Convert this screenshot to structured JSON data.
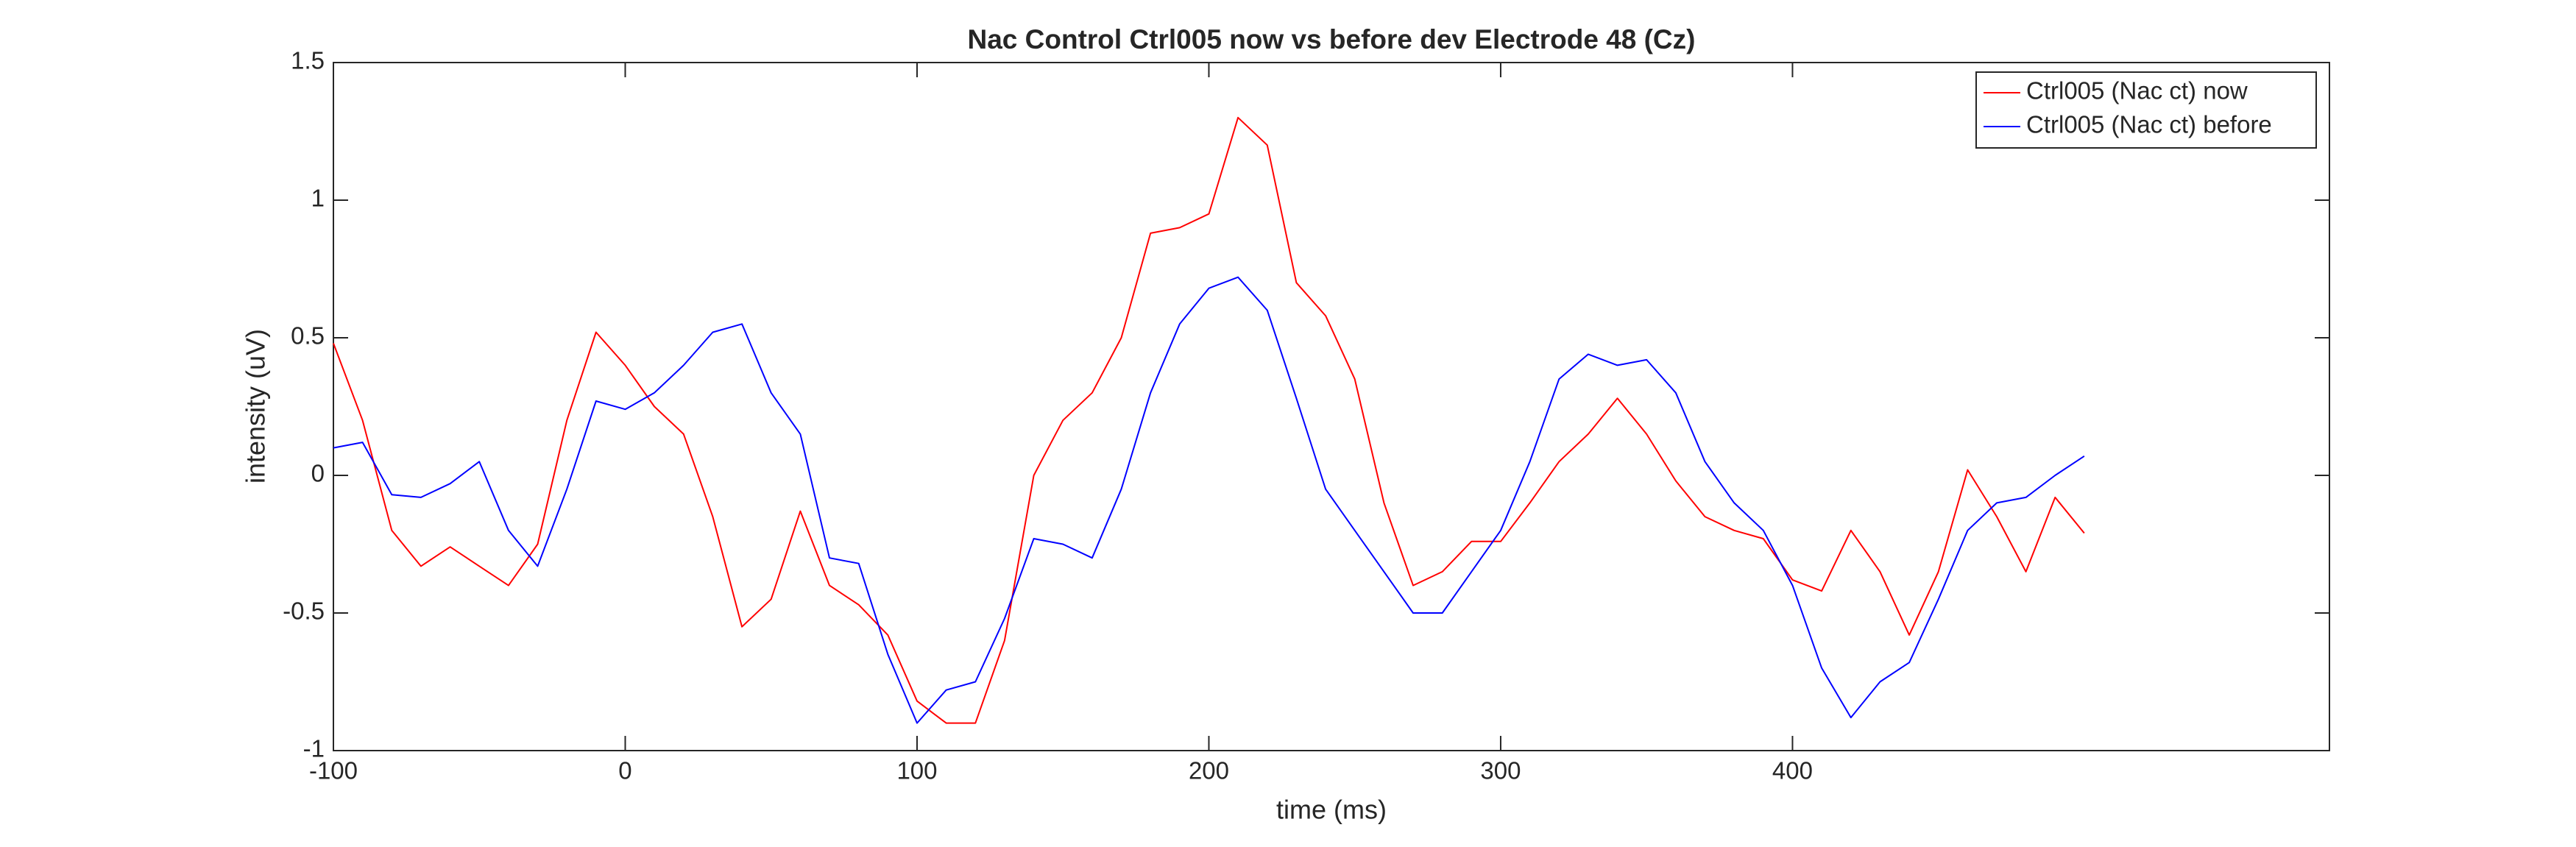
{
  "chart_data": {
    "type": "line",
    "title": "Nac Control Ctrl005 now vs before dev Electrode 48 (Cz)",
    "xlabel": "time (ms)",
    "ylabel": "intensity (uV)",
    "x": [
      -100,
      -90,
      -80,
      -70,
      -60,
      -50,
      -40,
      -30,
      -20,
      -10,
      0,
      10,
      20,
      30,
      40,
      50,
      60,
      70,
      80,
      90,
      100,
      110,
      120,
      130,
      140,
      150,
      160,
      170,
      180,
      190,
      200,
      210,
      220,
      230,
      240,
      250,
      260,
      270,
      280,
      290,
      300,
      310,
      320,
      330,
      340,
      350,
      360,
      370,
      380,
      390,
      400,
      410,
      420,
      430,
      440,
      450,
      460,
      470,
      480,
      490,
      500
    ],
    "series": [
      {
        "name": "Ctrl005 (Nac ct) now",
        "color": "#ff0000",
        "values": [
          0.48,
          0.2,
          -0.2,
          -0.33,
          -0.26,
          -0.33,
          -0.4,
          -0.25,
          0.2,
          0.52,
          0.4,
          0.25,
          0.15,
          -0.15,
          -0.55,
          -0.45,
          -0.13,
          -0.4,
          -0.47,
          -0.58,
          -0.82,
          -0.9,
          -0.9,
          -0.6,
          0.0,
          0.2,
          0.3,
          0.5,
          0.88,
          0.9,
          0.95,
          1.3,
          1.2,
          0.7,
          0.58,
          0.35,
          -0.1,
          -0.4,
          -0.35,
          -0.24,
          -0.24,
          -0.1,
          0.05,
          0.15,
          0.28,
          0.15,
          -0.02,
          -0.15,
          -0.2,
          -0.23,
          -0.38,
          -0.42,
          -0.2,
          -0.35,
          -0.58,
          -0.35,
          0.02,
          -0.15,
          -0.35,
          -0.08,
          -0.21
        ]
      },
      {
        "name": "Ctrl005 (Nac ct) before",
        "color": "#0000ff",
        "values": [
          0.1,
          0.12,
          -0.07,
          -0.08,
          -0.03,
          0.05,
          -0.2,
          -0.33,
          -0.05,
          0.27,
          0.24,
          0.3,
          0.4,
          0.52,
          0.55,
          0.3,
          0.15,
          -0.3,
          -0.32,
          -0.65,
          -0.9,
          -0.78,
          -0.75,
          -0.52,
          -0.23,
          -0.25,
          -0.3,
          -0.05,
          0.3,
          0.55,
          0.68,
          0.72,
          0.6,
          0.28,
          -0.05,
          -0.2,
          -0.35,
          -0.5,
          -0.5,
          -0.35,
          -0.2,
          0.05,
          0.35,
          0.44,
          0.4,
          0.42,
          0.3,
          0.05,
          -0.1,
          -0.2,
          -0.4,
          -0.7,
          -0.88,
          -0.75,
          -0.68,
          -0.45,
          -0.2,
          -0.1,
          -0.08,
          0.0,
          0.07
        ]
      }
    ],
    "xlim": [
      -100,
      584
    ],
    "xticks": [
      -100,
      0,
      100,
      200,
      300,
      400
    ],
    "ylim": [
      -1,
      1.5
    ],
    "yticks": [
      -1,
      -0.5,
      0,
      0.5,
      1,
      1.5
    ],
    "legend": "upper right"
  }
}
